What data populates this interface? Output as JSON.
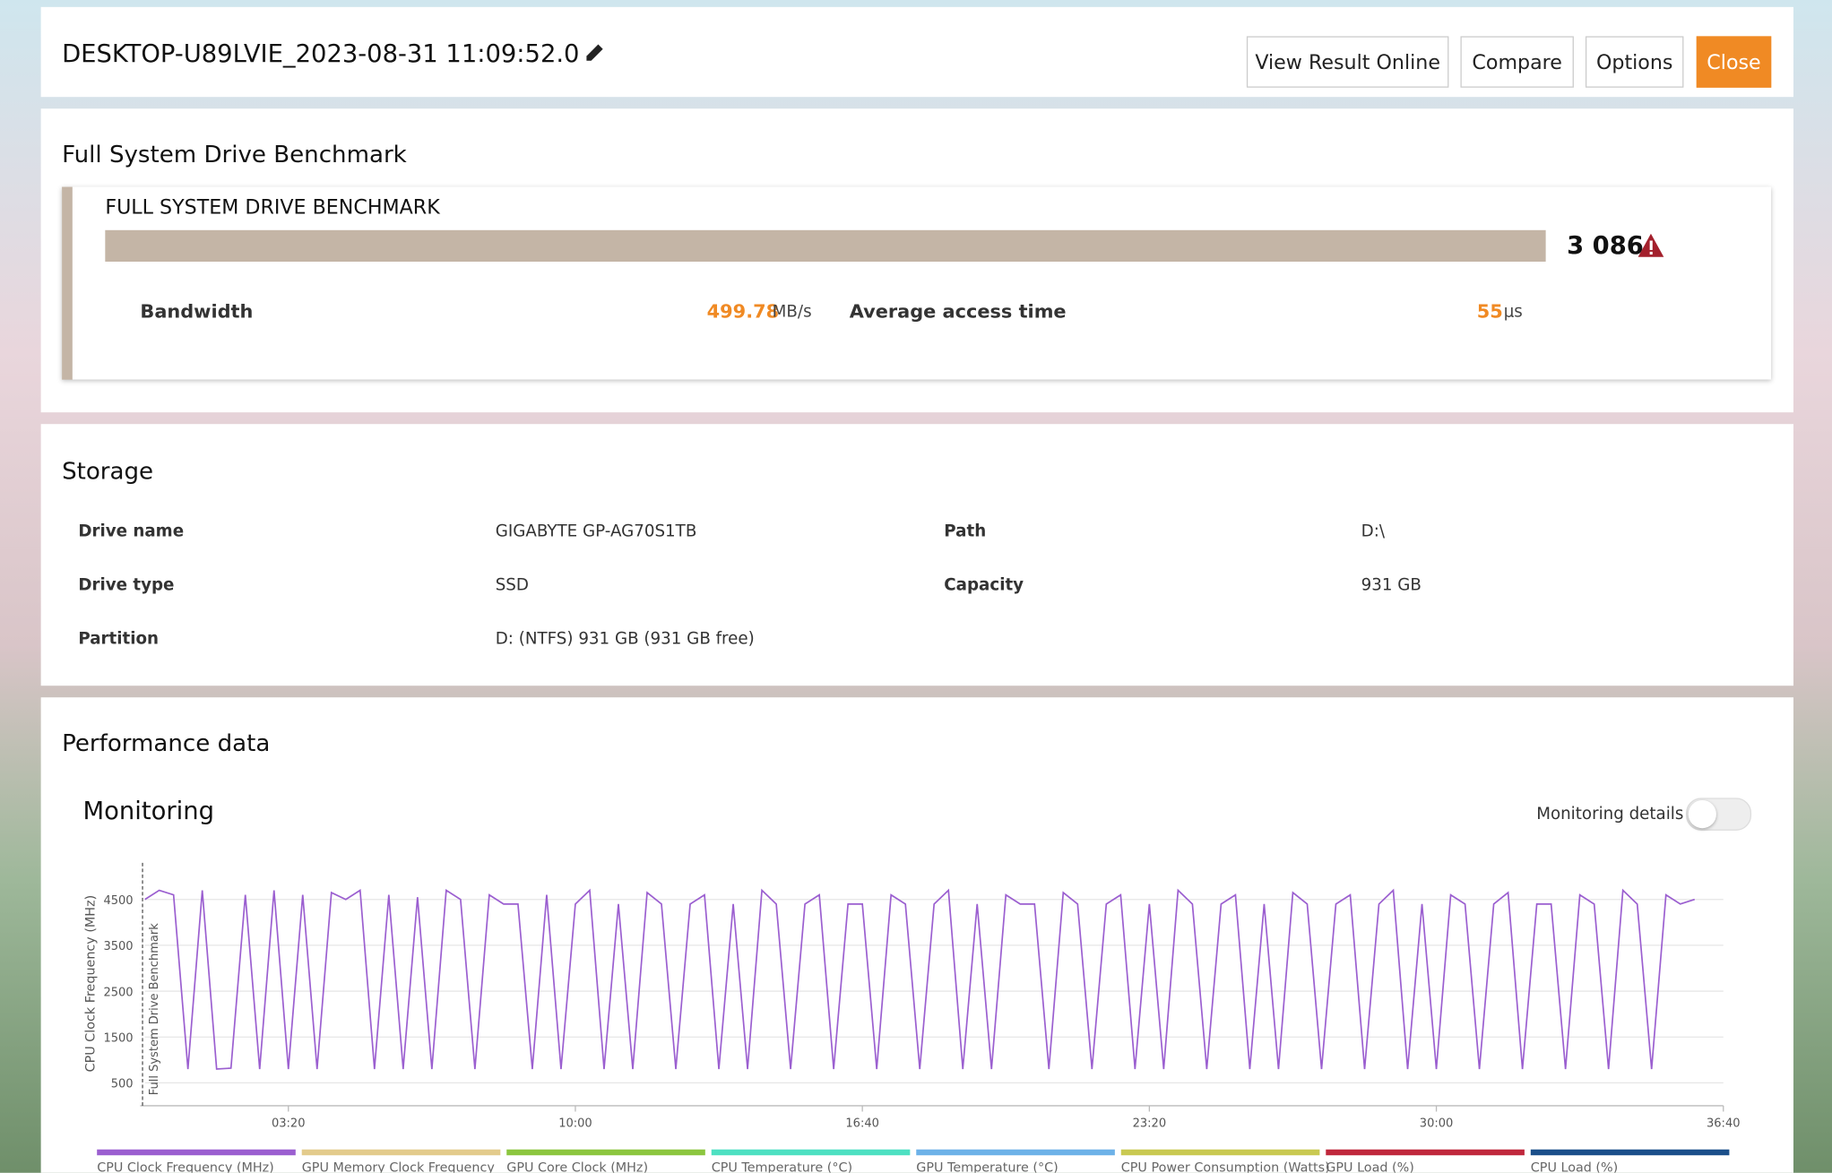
{
  "header": {
    "title": "DESKTOP-U89LVIE_2023-08-31 11:09:52.0",
    "buttons": [
      "View Result Online",
      "Compare",
      "Options",
      "Close"
    ]
  },
  "benchmark": {
    "heading": "Full System Drive Benchmark",
    "card_title": "FULL SYSTEM DRIVE BENCHMARK",
    "score": "3 086",
    "bandwidth_label": "Bandwidth",
    "bandwidth_value": "499.78",
    "bandwidth_unit": "MB/s",
    "access_label": "Average access time",
    "access_value": "55",
    "access_unit": "μs"
  },
  "storage": {
    "heading": "Storage",
    "rows": [
      [
        "Drive name",
        "GIGABYTE GP-AG70S1TB",
        "Path",
        "D:\\"
      ],
      [
        "Drive type",
        "SSD",
        "Capacity",
        "931 GB"
      ],
      [
        "Partition",
        "D: (NTFS) 931 GB (931 GB free)"
      ]
    ]
  },
  "performance": {
    "heading": "Performance data",
    "monitoring": "Monitoring",
    "details_toggle": "Monitoring details"
  },
  "chart_data": {
    "type": "line",
    "y_label": "CPU Clock Frequency (MHz)",
    "annotation": "Full System Drive Benchmark",
    "x": [
      0,
      20,
      40,
      60,
      80,
      100,
      120,
      140,
      160,
      180,
      200,
      220,
      240,
      260,
      280,
      300,
      320,
      340,
      360,
      380,
      400,
      420,
      440,
      460,
      480,
      500,
      520,
      540,
      560,
      580,
      600,
      620,
      640,
      660,
      680,
      700,
      720,
      740,
      760,
      780,
      800,
      820,
      840,
      860,
      880,
      900,
      920,
      940,
      960,
      980,
      1000,
      1020,
      1040,
      1060,
      1080,
      1100,
      1120,
      1140,
      1160,
      1180,
      1200,
      1220,
      1240,
      1260,
      1280,
      1300,
      1320,
      1340,
      1360,
      1380,
      1400,
      1420,
      1440,
      1460,
      1480,
      1500,
      1520,
      1540,
      1560,
      1580,
      1600,
      1620,
      1640,
      1660,
      1680,
      1700,
      1720,
      1740,
      1760,
      1780,
      1800,
      1820,
      1840,
      1860,
      1880,
      1900,
      1920,
      1940,
      1960,
      1980,
      2000,
      2020,
      2040,
      2060,
      2080,
      2100,
      2120,
      2140,
      2160
    ],
    "series": [
      {
        "name": "CPU Clock Frequency (MHz)",
        "color": "#9b5fd0",
        "values": [
          4500,
          4700,
          4600,
          800,
          4700,
          800,
          820,
          4600,
          800,
          4700,
          800,
          4600,
          800,
          4650,
          4500,
          4700,
          800,
          4600,
          800,
          4550,
          800,
          4700,
          4500,
          800,
          4600,
          4400,
          4400,
          800,
          4600,
          800,
          4400,
          4700,
          800,
          4400,
          800,
          4650,
          4400,
          800,
          4400,
          4600,
          800,
          4400,
          800,
          4700,
          4400,
          800,
          4400,
          4600,
          800,
          4400,
          4400,
          800,
          4600,
          4400,
          800,
          4400,
          4700,
          800,
          4400,
          800,
          4600,
          4400,
          4400,
          800,
          4650,
          4400,
          800,
          4400,
          4600,
          800,
          4400,
          800,
          4700,
          4400,
          800,
          4400,
          4600,
          800,
          4400,
          800,
          4650,
          4400,
          800,
          4400,
          4600,
          800,
          4400,
          4700,
          800,
          4400,
          800,
          4600,
          4400,
          800,
          4400,
          4650,
          800,
          4400,
          4400,
          800,
          4600,
          4400,
          800,
          4700,
          4400,
          800,
          4600,
          4400,
          4500
        ]
      }
    ],
    "xlim": [
      0,
      2200
    ],
    "xticks": [
      {
        "value": 200,
        "label": "03:20"
      },
      {
        "value": 600,
        "label": "10:00"
      },
      {
        "value": 1000,
        "label": "16:40"
      },
      {
        "value": 1400,
        "label": "23:20"
      },
      {
        "value": 1800,
        "label": "30:00"
      },
      {
        "value": 2200,
        "label": "36:40"
      }
    ],
    "ylim": [
      0,
      5300
    ],
    "yticks": [
      500,
      1500,
      2500,
      3500,
      4500
    ],
    "grid": true,
    "legend_items": [
      {
        "name": "GPU Memory Clock Frequency",
        "color": "#e3cb8c"
      },
      {
        "name": "GPU Core Clock (MHz)",
        "color": "#8cc63f"
      },
      {
        "name": "CPU Temperature (°C)",
        "color": "#4ee0c2"
      },
      {
        "name": "GPU Temperature (°C)",
        "color": "#6db2e8"
      },
      {
        "name": "CPU Power Consumption (Watts)",
        "color": "#c9c952"
      },
      {
        "name": "GPU Load (%)",
        "color": "#c0283c"
      },
      {
        "name": "CPU Load (%)",
        "color": "#1b4f8a"
      }
    ]
  }
}
